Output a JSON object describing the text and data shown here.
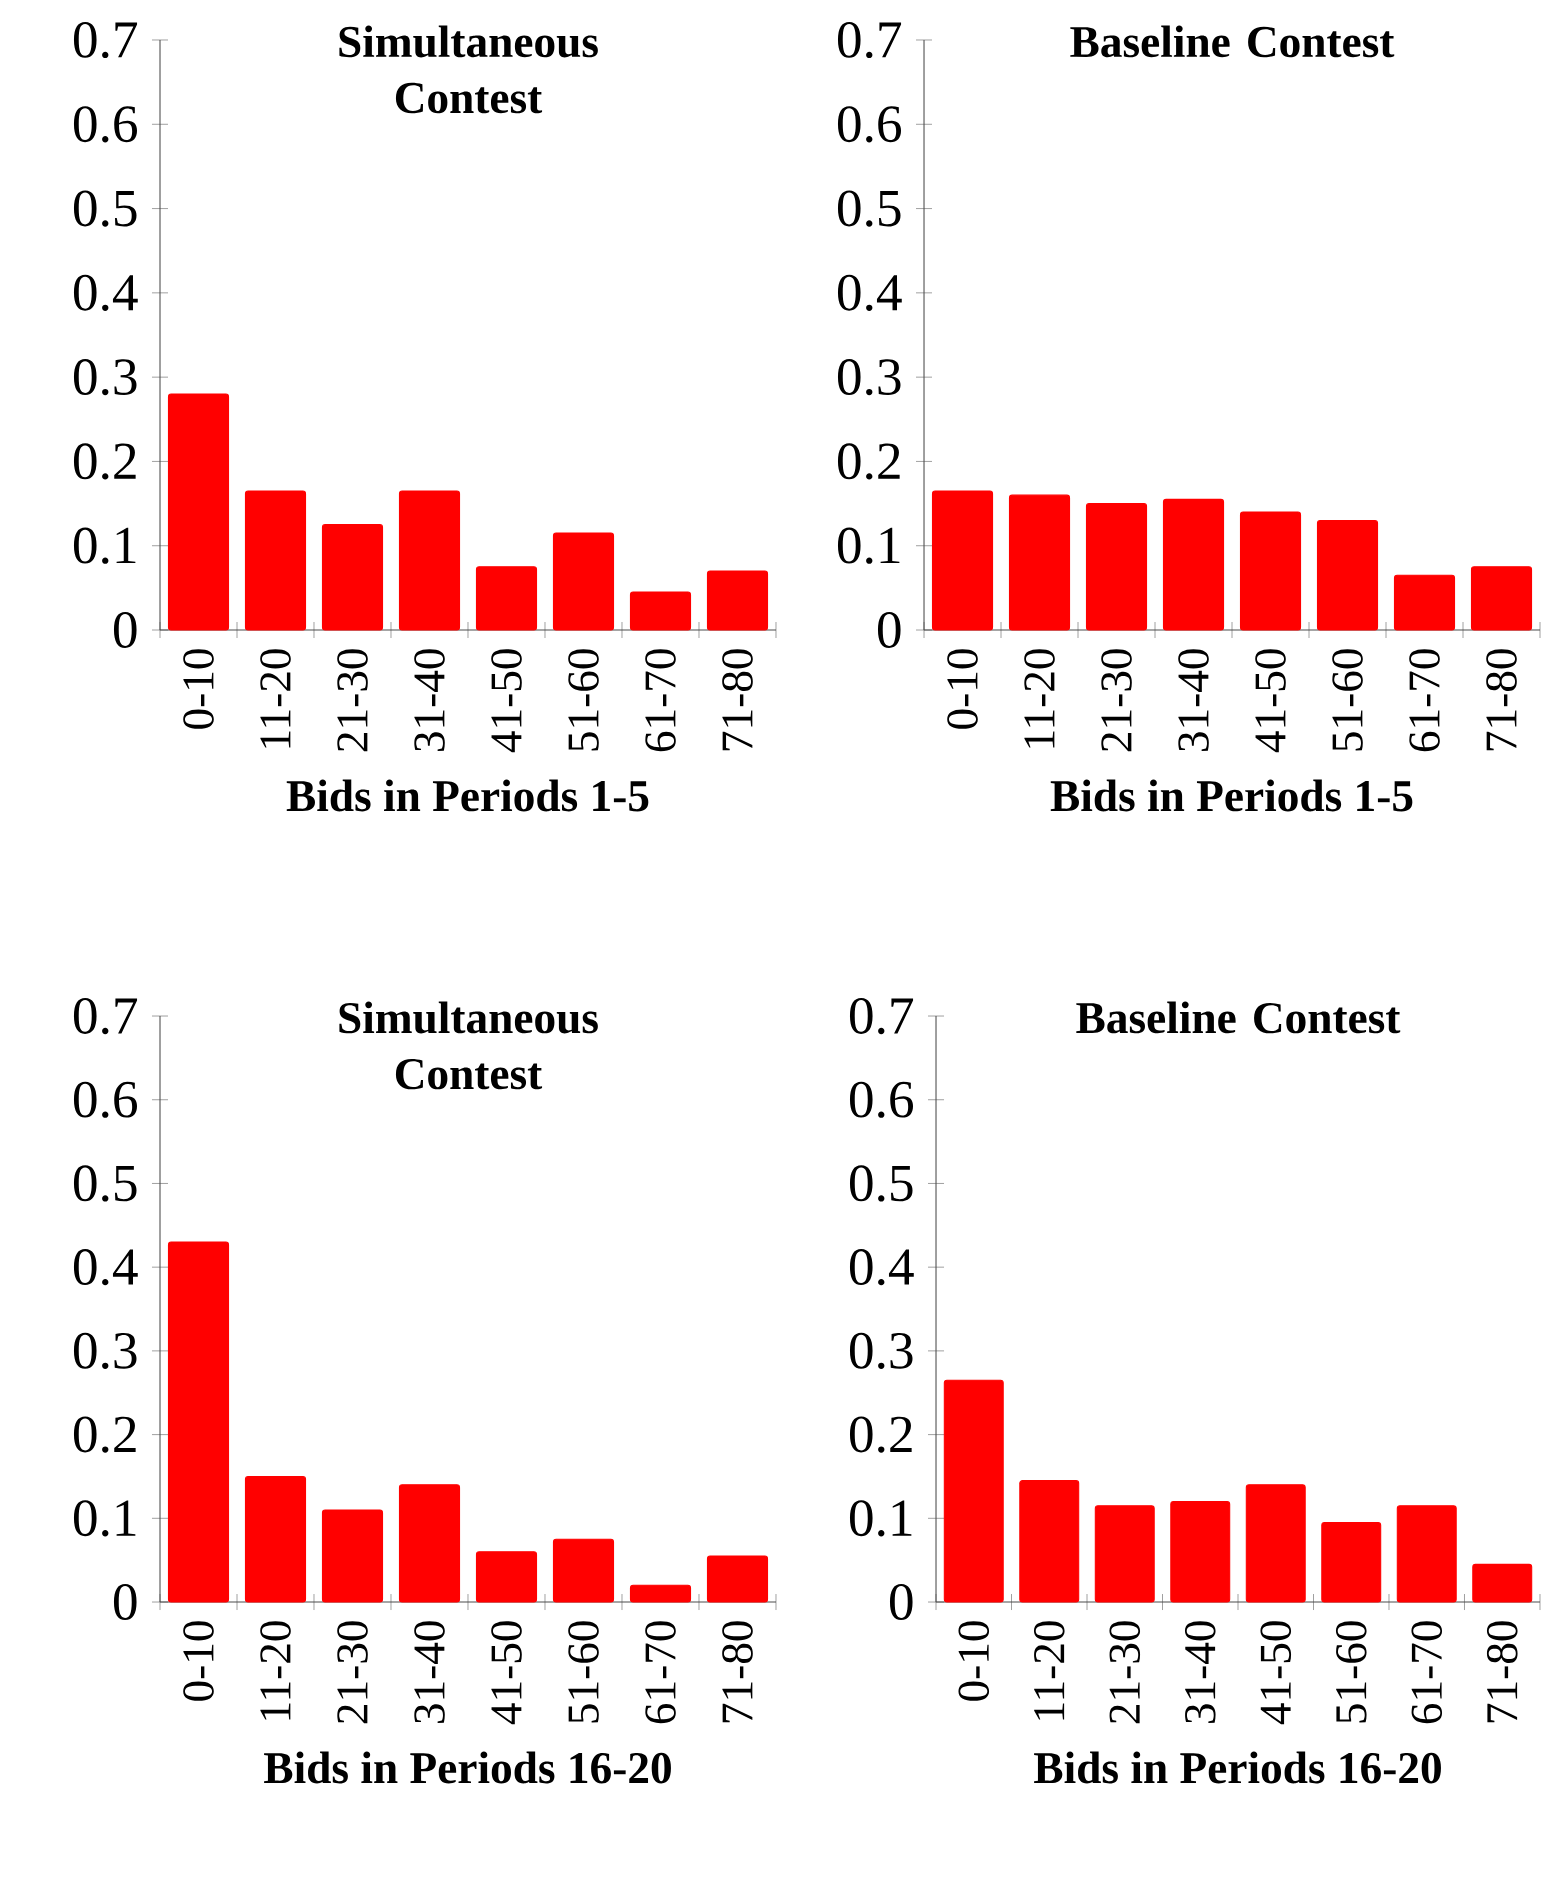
{
  "chart_data": [
    {
      "type": "bar",
      "title": "Simultaneous Contest",
      "xlabel": "Bids in Periods 1-5",
      "categories": [
        "0-10",
        "11-20",
        "21-30",
        "31-40",
        "41-50",
        "51-60",
        "61-70",
        "71-80"
      ],
      "values": [
        0.28,
        0.165,
        0.125,
        0.165,
        0.075,
        0.115,
        0.045,
        0.07
      ],
      "color": "#ff0000",
      "ylim": [
        0,
        0.7
      ],
      "yticks": [
        0,
        0.1,
        0.2,
        0.3,
        0.4,
        0.5,
        0.6,
        0.7
      ]
    },
    {
      "type": "bar",
      "title": "Baseline Contest",
      "xlabel": "Bids in Periods 1-5",
      "categories": [
        "0-10",
        "11-20",
        "21-30",
        "31-40",
        "41-50",
        "51-60",
        "61-70",
        "71-80"
      ],
      "values": [
        0.165,
        0.16,
        0.15,
        0.155,
        0.14,
        0.13,
        0.065,
        0.075
      ],
      "color": "#ff0000",
      "ylim": [
        0,
        0.7
      ],
      "yticks": [
        0,
        0.1,
        0.2,
        0.3,
        0.4,
        0.5,
        0.6,
        0.7
      ]
    },
    {
      "type": "bar",
      "title": "Simultaneous Contest",
      "xlabel": "Bids in Periods 16-20",
      "categories": [
        "0-10",
        "11-20",
        "21-30",
        "31-40",
        "41-50",
        "51-60",
        "61-70",
        "71-80"
      ],
      "values": [
        0.43,
        0.15,
        0.11,
        0.14,
        0.06,
        0.075,
        0.02,
        0.055
      ],
      "color": "#ff0000",
      "ylim": [
        0,
        0.7
      ],
      "yticks": [
        0,
        0.1,
        0.2,
        0.3,
        0.4,
        0.5,
        0.6,
        0.7
      ]
    },
    {
      "type": "bar",
      "title": "Baseline Contest",
      "xlabel": "Bids in Periods 16-20",
      "categories": [
        "0-10",
        "11-20",
        "21-30",
        "31-40",
        "41-50",
        "51-60",
        "61-70",
        "71-80"
      ],
      "values": [
        0.265,
        0.145,
        0.115,
        0.12,
        0.14,
        0.095,
        0.115,
        0.045
      ],
      "color": "#ff0000",
      "ylim": [
        0,
        0.7
      ],
      "yticks": [
        0,
        0.1,
        0.2,
        0.3,
        0.4,
        0.5,
        0.6,
        0.7
      ]
    }
  ]
}
